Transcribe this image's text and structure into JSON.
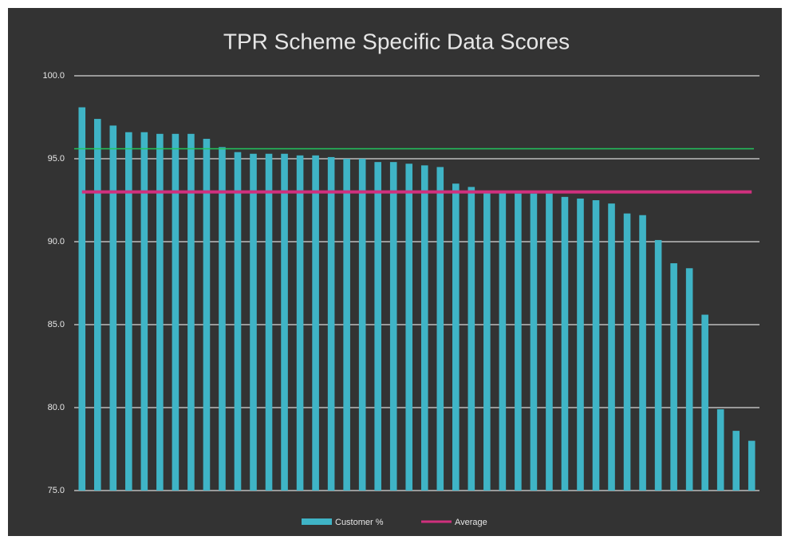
{
  "chart_data": {
    "type": "bar",
    "title": "TPR Scheme Specific Data Scores",
    "categories": [
      null,
      null,
      null,
      null,
      null,
      null,
      null,
      null,
      null,
      null,
      null,
      null,
      null,
      null,
      null,
      null,
      null,
      null,
      null,
      null,
      null,
      null,
      null,
      null,
      null,
      null,
      null,
      null,
      null,
      null,
      null,
      null,
      null,
      null,
      null,
      null,
      null,
      null,
      null,
      null,
      null,
      null,
      null,
      null
    ],
    "series": [
      {
        "name": "Customer %",
        "color": "#3fb4c6",
        "values": [
          98.1,
          97.4,
          97.0,
          96.6,
          96.6,
          96.5,
          96.5,
          96.5,
          96.2,
          95.7,
          95.4,
          95.3,
          95.3,
          95.3,
          95.2,
          95.2,
          95.1,
          95.0,
          95.0,
          94.8,
          94.8,
          94.7,
          94.6,
          94.5,
          93.5,
          93.3,
          93.0,
          93.0,
          92.9,
          92.9,
          92.9,
          92.7,
          92.6,
          92.5,
          92.3,
          91.7,
          91.6,
          90.1,
          88.7,
          88.4,
          85.6,
          79.9,
          78.6,
          78.0
        ]
      },
      {
        "name": "Average",
        "color": "#d0307e",
        "values": [
          93.0,
          93.0,
          93.0,
          93.0,
          93.0,
          93.0,
          93.0,
          93.0,
          93.0,
          93.0,
          93.0,
          93.0,
          93.0,
          93.0,
          93.0,
          93.0,
          93.0,
          93.0,
          93.0,
          93.0,
          93.0,
          93.0,
          93.0,
          93.0,
          93.0,
          93.0,
          93.0,
          93.0,
          93.0,
          93.0,
          93.0,
          93.0,
          93.0,
          93.0,
          93.0,
          93.0,
          93.0,
          93.0,
          93.0,
          93.0,
          93.0,
          93.0,
          93.0,
          93.0
        ]
      }
    ],
    "reference_line": {
      "value": 95.6,
      "color": "#22c55e"
    },
    "ylim": [
      75,
      100
    ],
    "yticks": [
      {
        "value": 75,
        "label": "75.0"
      },
      {
        "value": 80,
        "label": "80.0"
      },
      {
        "value": 85,
        "label": "85.0"
      },
      {
        "value": 90,
        "label": "90.0"
      },
      {
        "value": 95,
        "label": "95.0"
      },
      {
        "value": 100,
        "label": "100.0"
      }
    ],
    "grid": true
  }
}
